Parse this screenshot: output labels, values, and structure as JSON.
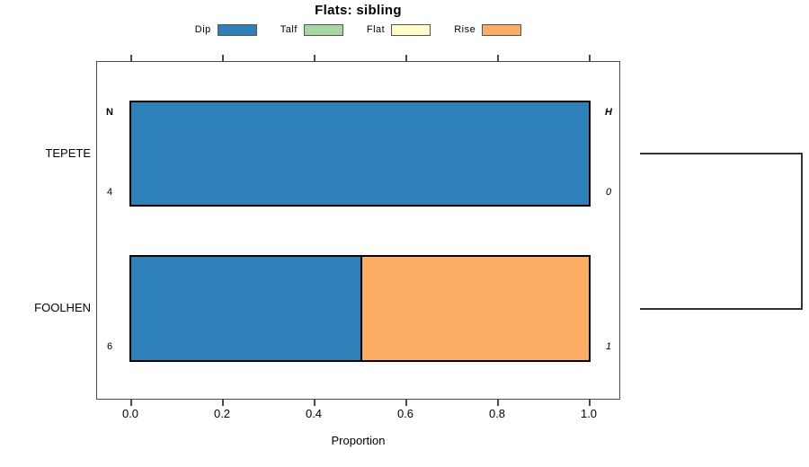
{
  "chart_data": {
    "type": "bar",
    "orientation": "horizontal",
    "stacked": true,
    "title": "Flats: sibling",
    "xlabel": "Proportion",
    "xlim": [
      0,
      1
    ],
    "xticks": [
      0.0,
      0.2,
      0.4,
      0.6,
      0.8,
      1.0
    ],
    "xtick_labels": [
      "0.0",
      "0.2",
      "0.4",
      "0.6",
      "0.8",
      "1.0"
    ],
    "grid": false,
    "categories": [
      "TEPETE",
      "FOOLHEN"
    ],
    "legend": {
      "position": "top-center",
      "items": [
        {
          "label": "Dip",
          "color": "#2E80B9"
        },
        {
          "label": "Talf",
          "color": "#A7D7A0"
        },
        {
          "label": "Flat",
          "color": "#FFFFC8"
        },
        {
          "label": "Rise",
          "color": "#FCAC63"
        }
      ]
    },
    "series": [
      {
        "name": "Dip",
        "values": [
          1.0,
          0.5
        ]
      },
      {
        "name": "Talf",
        "values": [
          0.0,
          0.0
        ]
      },
      {
        "name": "Flat",
        "values": [
          0.0,
          0.0
        ]
      },
      {
        "name": "Rise",
        "values": [
          0.0,
          0.5
        ]
      }
    ],
    "bars": [
      {
        "category": "TEPETE",
        "segments": [
          {
            "name": "Dip",
            "value": 1.0
          }
        ]
      },
      {
        "category": "FOOLHEN",
        "segments": [
          {
            "name": "Dip",
            "value": 0.5
          },
          {
            "name": "Rise",
            "value": 0.5
          }
        ]
      }
    ],
    "annotations": {
      "left_header": "N",
      "right_header": "H",
      "rows": [
        {
          "category": "TEPETE",
          "n": "4",
          "h": "0"
        },
        {
          "category": "FOOLHEN",
          "n": "6",
          "h": "1"
        }
      ]
    },
    "right_cluster_bracket": true
  },
  "colors": {
    "bar_border": "#000000",
    "frame": "#4A4A4A",
    "bracket": "#333333",
    "text": "#000000",
    "background": "#FFFFFF"
  }
}
